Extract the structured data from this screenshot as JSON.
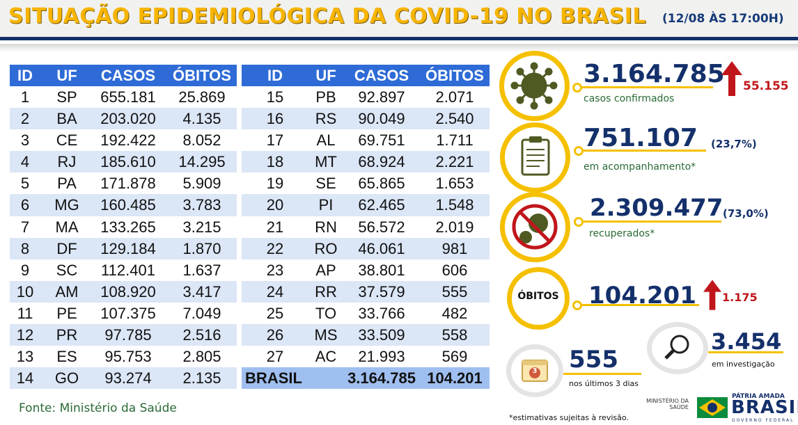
{
  "header": {
    "title": "SITUAÇÃO EPIDEMIOLÓGICA DA COVID-19 NO BRASIL",
    "date": "(12/08 ÀS 17:00H)"
  },
  "table_headers": {
    "id": "ID",
    "uf": "UF",
    "casos": "CASOS",
    "obitos": "ÓBITOS"
  },
  "left_rows": [
    {
      "id": "1",
      "uf": "SP",
      "casos": "655.181",
      "obitos": "25.869"
    },
    {
      "id": "2",
      "uf": "BA",
      "casos": "203.020",
      "obitos": "4.135"
    },
    {
      "id": "3",
      "uf": "CE",
      "casos": "192.422",
      "obitos": "8.052"
    },
    {
      "id": "4",
      "uf": "RJ",
      "casos": "185.610",
      "obitos": "14.295"
    },
    {
      "id": "5",
      "uf": "PA",
      "casos": "171.878",
      "obitos": "5.909"
    },
    {
      "id": "6",
      "uf": "MG",
      "casos": "160.485",
      "obitos": "3.783"
    },
    {
      "id": "7",
      "uf": "MA",
      "casos": "133.265",
      "obitos": "3.215"
    },
    {
      "id": "8",
      "uf": "DF",
      "casos": "129.184",
      "obitos": "1.870"
    },
    {
      "id": "9",
      "uf": "SC",
      "casos": "112.401",
      "obitos": "1.637"
    },
    {
      "id": "10",
      "uf": "AM",
      "casos": "108.920",
      "obitos": "3.417"
    },
    {
      "id": "11",
      "uf": "PE",
      "casos": "107.375",
      "obitos": "7.049"
    },
    {
      "id": "12",
      "uf": "PR",
      "casos": "97.785",
      "obitos": "2.516"
    },
    {
      "id": "13",
      "uf": "ES",
      "casos": "95.753",
      "obitos": "2.805"
    },
    {
      "id": "14",
      "uf": "GO",
      "casos": "93.274",
      "obitos": "2.135"
    }
  ],
  "right_rows": [
    {
      "id": "15",
      "uf": "PB",
      "casos": "92.897",
      "obitos": "2.071"
    },
    {
      "id": "16",
      "uf": "RS",
      "casos": "90.049",
      "obitos": "2.540"
    },
    {
      "id": "17",
      "uf": "AL",
      "casos": "69.751",
      "obitos": "1.711"
    },
    {
      "id": "18",
      "uf": "MT",
      "casos": "68.924",
      "obitos": "2.221"
    },
    {
      "id": "19",
      "uf": "SE",
      "casos": "65.865",
      "obitos": "1.653"
    },
    {
      "id": "20",
      "uf": "PI",
      "casos": "62.465",
      "obitos": "1.548"
    },
    {
      "id": "21",
      "uf": "RN",
      "casos": "56.572",
      "obitos": "2.019"
    },
    {
      "id": "22",
      "uf": "RO",
      "casos": "46.061",
      "obitos": "981"
    },
    {
      "id": "23",
      "uf": "AP",
      "casos": "38.801",
      "obitos": "606"
    },
    {
      "id": "24",
      "uf": "RR",
      "casos": "37.579",
      "obitos": "555"
    },
    {
      "id": "25",
      "uf": "TO",
      "casos": "33.766",
      "obitos": "482"
    },
    {
      "id": "26",
      "uf": "MS",
      "casos": "33.509",
      "obitos": "558"
    },
    {
      "id": "27",
      "uf": "AC",
      "casos": "21.993",
      "obitos": "569"
    }
  ],
  "total_row": {
    "label": "BRASIL",
    "casos": "3.164.785",
    "obitos": "104.201"
  },
  "summary": {
    "confirmados": {
      "value": "3.164.785",
      "label": "casos confirmados",
      "increase": "55.155",
      "icon": "virus-icon"
    },
    "acompanhamento": {
      "value": "751.107",
      "pct": "(23,7%)",
      "label": "em acompanhamento*",
      "icon": "clipboard-icon"
    },
    "recuperados": {
      "value": "2.309.477",
      "pct": "(73,0%)",
      "label": "recuperados*",
      "icon": "no-virus-icon"
    },
    "obitos": {
      "badge": "ÓBITOS",
      "value": "104.201",
      "increase": "1.175"
    },
    "investigacao": {
      "value": "3.454",
      "label": "em investigação",
      "icon": "magnifier-icon"
    },
    "ultimos3": {
      "value": "555",
      "label": "nos últimos 3 dias",
      "calendar_number": "3",
      "icon": "calendar-icon"
    }
  },
  "footer": {
    "fonte": "Fonte: Ministério da Saúde",
    "nota": "*estimativas sujeitas à revisão.",
    "ministerio": "MINISTÉRIO DA SAÚDE",
    "patria": "PÁTRIA AMADA",
    "brasil": "BRASIL",
    "governo": "GOVERNO FEDERAL"
  },
  "colors": {
    "accent": "#f5c000",
    "navy": "#14306b",
    "table_head": "#2e6bd6",
    "row_alt": "#dbe6f6",
    "increase_red": "#c0161b"
  }
}
